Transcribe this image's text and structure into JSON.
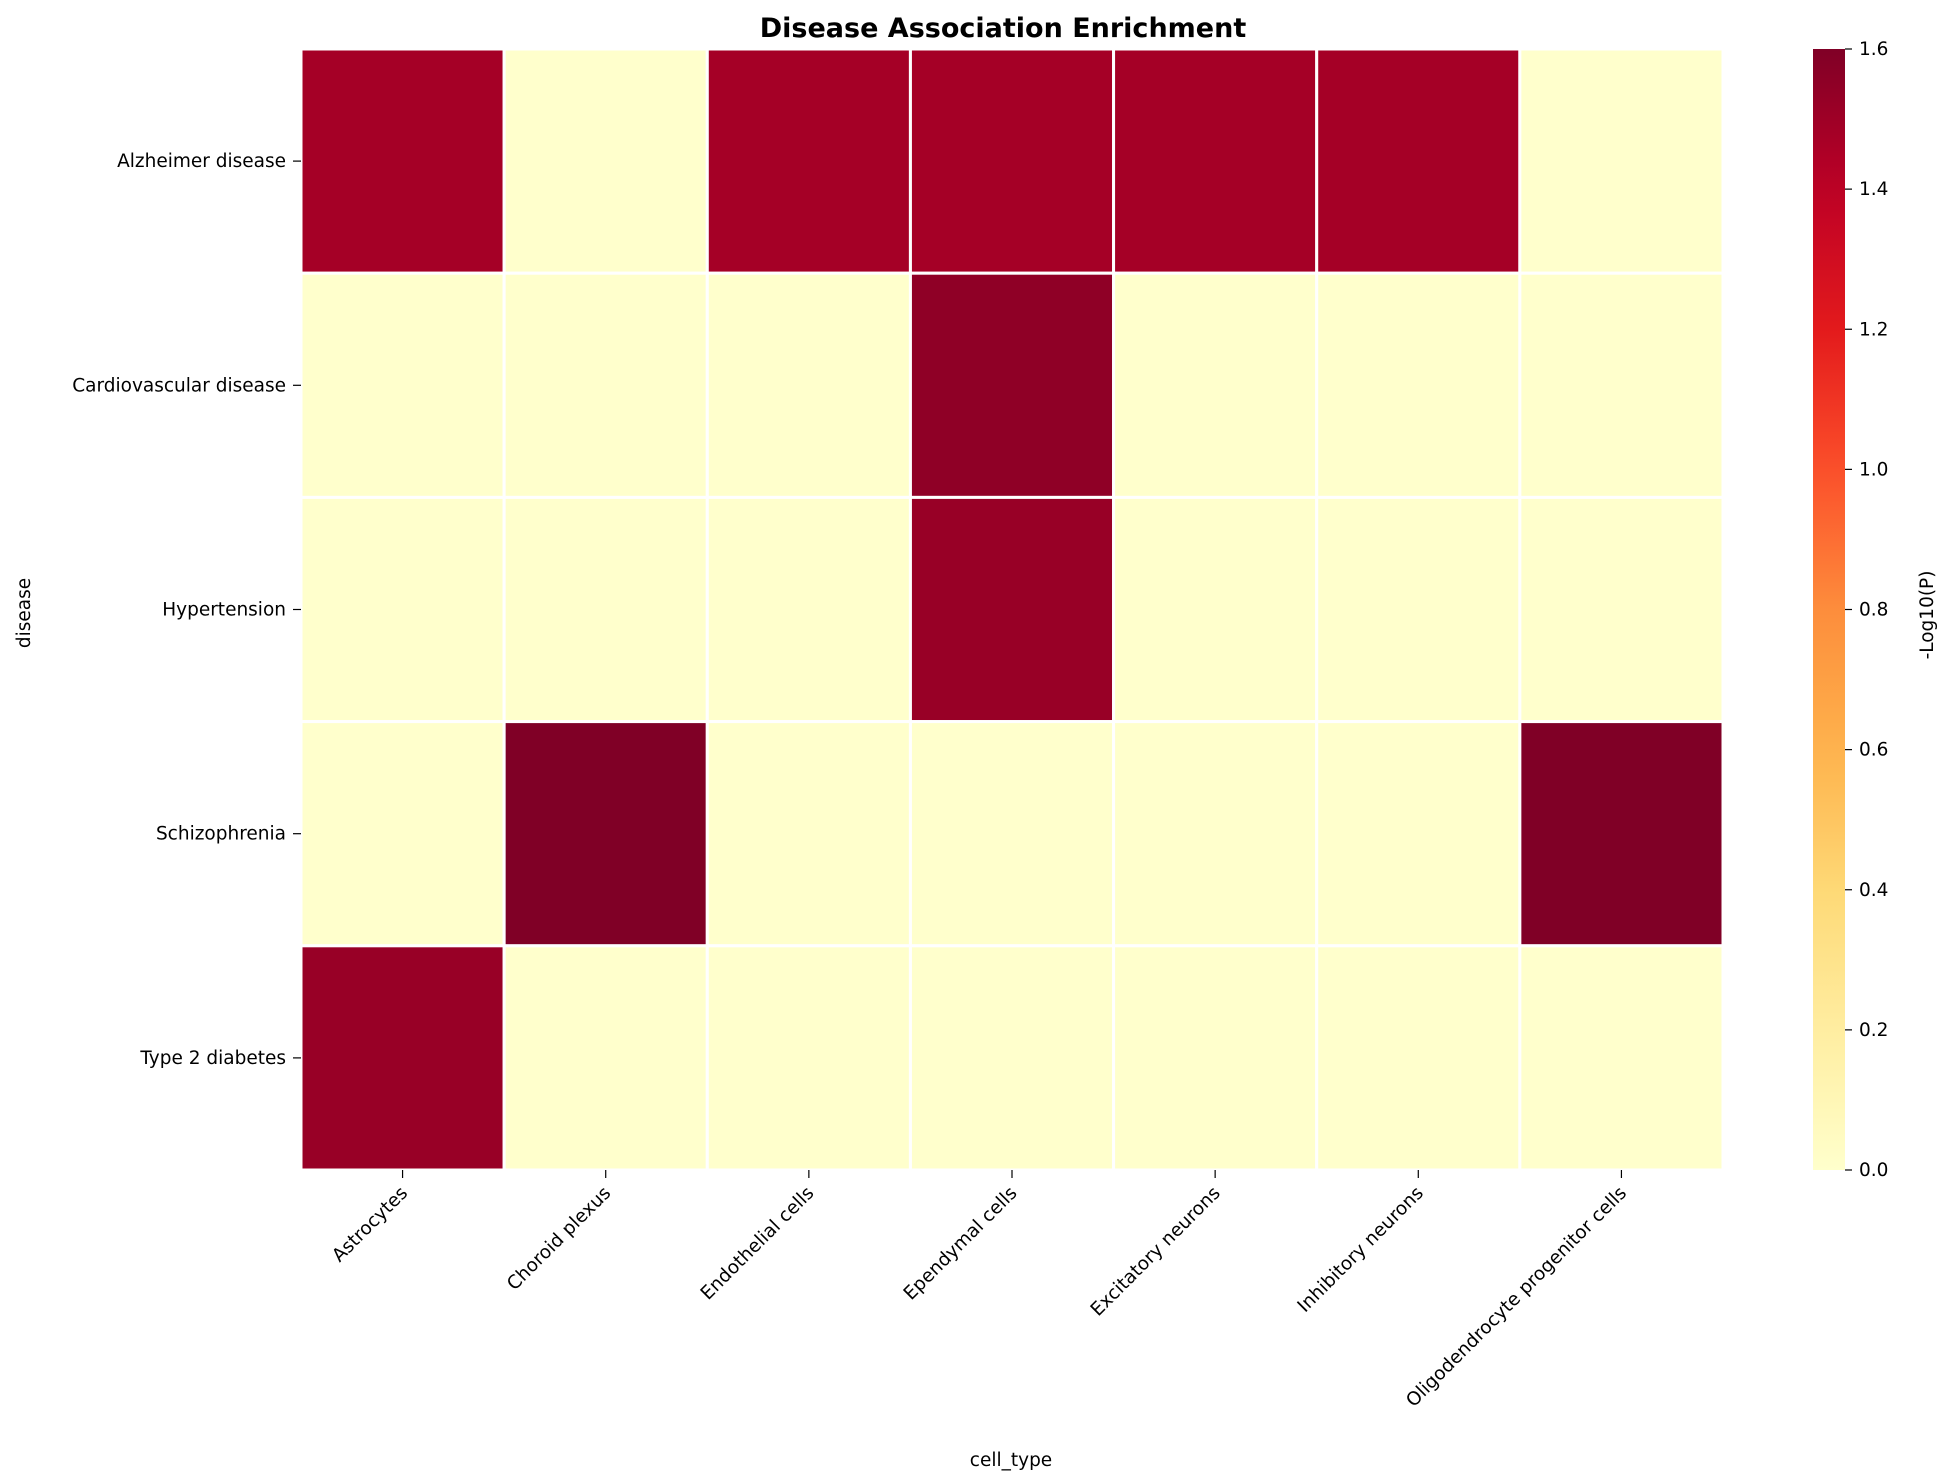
{
  "chart_data": {
    "type": "heatmap",
    "title": "Disease Association Enrichment",
    "xlabel": "cell_type",
    "ylabel": "disease",
    "x_categories": [
      "Astrocytes",
      "Choroid plexus",
      "Endothelial cells",
      "Ependymal cells",
      "Excitatory neurons",
      "Inhibitory neurons",
      "Oligodendrocyte progenitor cells"
    ],
    "y_categories": [
      "Alzheimer disease",
      "Cardiovascular disease",
      "Hypertension",
      "Schizophrenia",
      "Type 2 diabetes"
    ],
    "values": [
      [
        1.48,
        0.0,
        1.48,
        1.48,
        1.48,
        1.48,
        0.0
      ],
      [
        0.0,
        0.0,
        0.0,
        1.55,
        0.0,
        0.0,
        0.0
      ],
      [
        0.0,
        0.0,
        0.0,
        1.52,
        0.0,
        0.0,
        0.0
      ],
      [
        0.0,
        1.6,
        0.0,
        0.0,
        0.0,
        0.0,
        1.6
      ],
      [
        1.52,
        0.0,
        0.0,
        0.0,
        0.0,
        0.0,
        0.0
      ]
    ],
    "colormap": "YlOrRd",
    "vmin": 0.0,
    "vmax": 1.6,
    "colorbar": {
      "label": "-Log10(P)",
      "ticks": [
        "0.0",
        "0.2",
        "0.4",
        "0.6",
        "0.8",
        "1.0",
        "1.2",
        "1.4",
        "1.6"
      ]
    },
    "cell_border_color": "#ffffff",
    "legend": "none"
  }
}
